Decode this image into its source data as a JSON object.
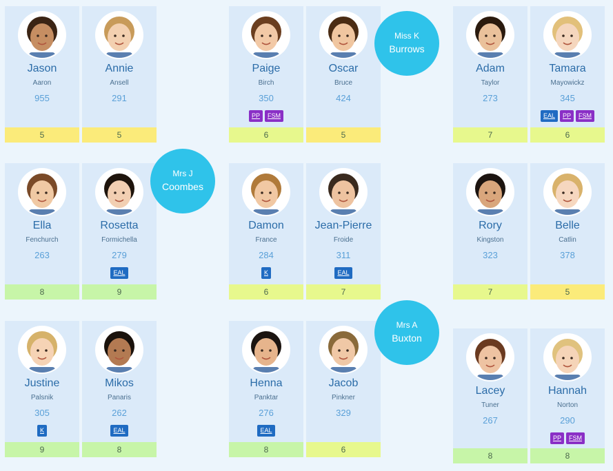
{
  "colors": {
    "card": "#dbeaf9",
    "grade_yellow": "#fbeb7a",
    "grade_lime": "#e7f88d",
    "grade_green": "#c7f5a8",
    "tag_purple": "#8a2fc6",
    "tag_blue": "#1f6bc2",
    "teacher_circle": "#2fc3ea"
  },
  "teachers": [
    {
      "title": "Miss K",
      "name": "Burrows"
    },
    {
      "title": "Mrs J",
      "name": "Coombes"
    },
    {
      "title": "Mrs A",
      "name": "Buxton"
    }
  ],
  "students": [
    {
      "first": "Jason",
      "last": "Aaron",
      "score": "955",
      "tags": [],
      "grade": "5",
      "grade_color": "yellow",
      "avatar_icon": "child-photo-icon"
    },
    {
      "first": "Annie",
      "last": "Ansell",
      "score": "291",
      "tags": [],
      "grade": "5",
      "grade_color": "yellow",
      "avatar_icon": "child-photo-icon"
    },
    {
      "first": "Paige",
      "last": "Birch",
      "score": "350",
      "tags": [
        "PP",
        "FSM"
      ],
      "grade": "6",
      "grade_color": "lime",
      "avatar_icon": "child-photo-icon"
    },
    {
      "first": "Oscar",
      "last": "Bruce",
      "score": "424",
      "tags": [],
      "grade": "5",
      "grade_color": "yellow",
      "avatar_icon": "child-photo-icon"
    },
    {
      "first": "Adam",
      "last": "Taylor",
      "score": "273",
      "tags": [],
      "grade": "7",
      "grade_color": "lime",
      "avatar_icon": "child-photo-icon"
    },
    {
      "first": "Tamara",
      "last": "Mayowickz",
      "score": "345",
      "tags": [
        "EAL",
        "PP",
        "FSM"
      ],
      "grade": "6",
      "grade_color": "lime",
      "avatar_icon": "child-photo-icon"
    },
    {
      "first": "Ella",
      "last": "Fenchurch",
      "score": "263",
      "tags": [],
      "grade": "8",
      "grade_color": "green",
      "avatar_icon": "child-photo-icon"
    },
    {
      "first": "Rosetta",
      "last": "Formichella",
      "score": "279",
      "tags": [
        "EAL"
      ],
      "grade": "9",
      "grade_color": "green",
      "avatar_icon": "child-photo-icon"
    },
    {
      "first": "Damon",
      "last": "France",
      "score": "284",
      "tags": [
        "K"
      ],
      "grade": "6",
      "grade_color": "lime",
      "avatar_icon": "child-photo-icon"
    },
    {
      "first": "Jean-Pierre",
      "last": "Froide",
      "score": "311",
      "tags": [
        "EAL"
      ],
      "grade": "7",
      "grade_color": "lime",
      "avatar_icon": "child-photo-icon"
    },
    {
      "first": "Rory",
      "last": "Kingston",
      "score": "323",
      "tags": [],
      "grade": "7",
      "grade_color": "lime",
      "avatar_icon": "child-photo-icon"
    },
    {
      "first": "Belle",
      "last": "Catlin",
      "score": "378",
      "tags": [],
      "grade": "5",
      "grade_color": "yellow",
      "avatar_icon": "child-photo-icon"
    },
    {
      "first": "Justine",
      "last": "Palsnik",
      "score": "305",
      "tags": [
        "K"
      ],
      "grade": "9",
      "grade_color": "green",
      "avatar_icon": "child-photo-icon"
    },
    {
      "first": "Mikos",
      "last": "Panaris",
      "score": "262",
      "tags": [
        "EAL"
      ],
      "grade": "8",
      "grade_color": "green",
      "avatar_icon": "child-photo-icon"
    },
    {
      "first": "Henna",
      "last": "Panktar",
      "score": "276",
      "tags": [
        "EAL"
      ],
      "grade": "8",
      "grade_color": "green",
      "avatar_icon": "child-photo-icon"
    },
    {
      "first": "Jacob",
      "last": "Pinkner",
      "score": "329",
      "tags": [],
      "grade": "6",
      "grade_color": "lime",
      "avatar_icon": "child-photo-icon"
    },
    {
      "first": "Lacey",
      "last": "Tuner",
      "score": "267",
      "tags": [],
      "grade": "8",
      "grade_color": "green",
      "avatar_icon": "child-photo-icon"
    },
    {
      "first": "Hannah",
      "last": "Norton",
      "score": "290",
      "tags": [
        "PP",
        "FSM"
      ],
      "grade": "8",
      "grade_color": "green",
      "avatar_icon": "child-photo-icon"
    }
  ]
}
